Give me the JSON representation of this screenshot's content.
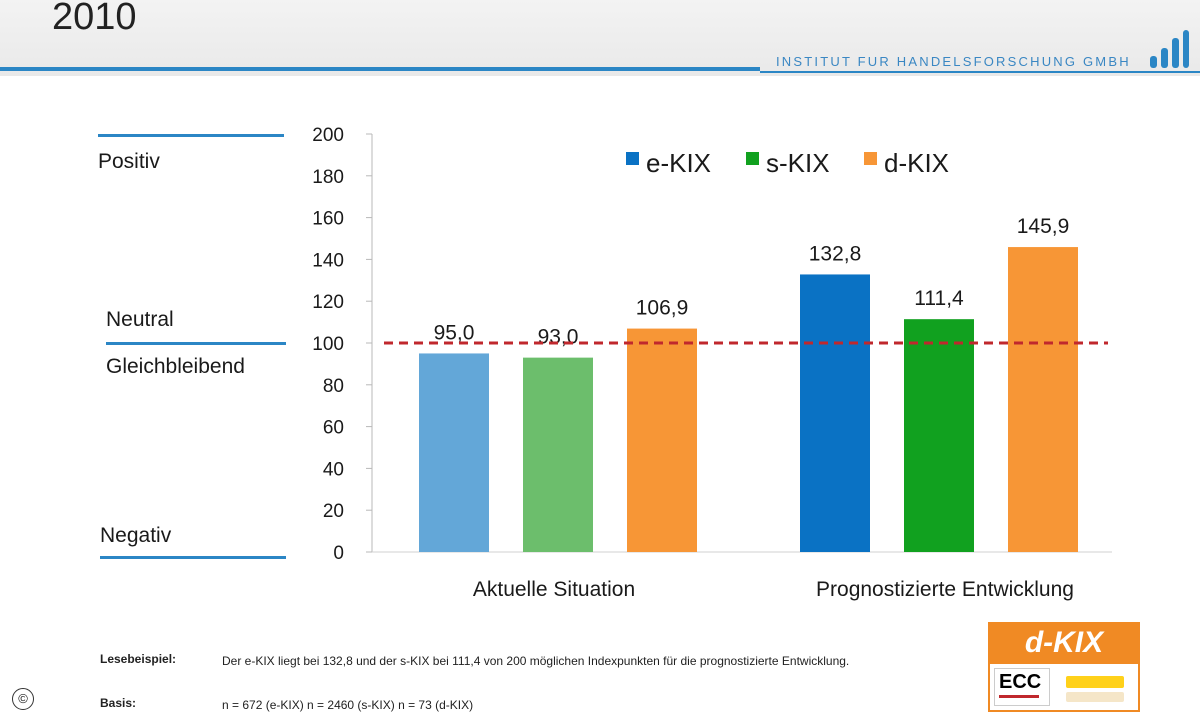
{
  "header": {
    "title": "2010",
    "institute": "INSTITUT FUR HANDELSFORSCHUNG GMBH"
  },
  "side_labels": {
    "positive": "Positiv",
    "neutral": "Neutral",
    "constant": "Gleichbleibend",
    "negative": "Negativ"
  },
  "chart_data": {
    "type": "bar",
    "categories": [
      "Aktuelle Situation",
      "Prognostizierte Entwicklung"
    ],
    "series": [
      {
        "name": "e-KIX",
        "values": [
          95.0,
          132.8
        ],
        "labels": [
          "95,0",
          "132,8"
        ],
        "color": "#0a72c4",
        "color_muted": "#63a7d8"
      },
      {
        "name": "s-KIX",
        "values": [
          93.0,
          111.4
        ],
        "labels": [
          "93,0",
          "111,4"
        ],
        "color": "#11a11f",
        "color_muted": "#6cbe6c"
      },
      {
        "name": "d-KIX",
        "values": [
          106.9,
          145.9
        ],
        "labels": [
          "106,9",
          "145,9"
        ],
        "color": "#f79636",
        "color_muted": "#f79636"
      }
    ],
    "ylim": [
      0,
      200
    ],
    "yticks": [
      0,
      20,
      40,
      60,
      80,
      100,
      120,
      140,
      160,
      180,
      200
    ],
    "reference_line": {
      "value": 100,
      "color": "#c0282d",
      "style": "dashed"
    },
    "legend_position": "top-right",
    "grid": false
  },
  "footnote": {
    "reading_example_label": "Lesebeispiel:",
    "reading_example_text": "Der e-KIX liegt bei 132,8 und der s-KIX bei 111,4 von 200 möglichen Indexpunkten für die prognostizierte Entwicklung.",
    "basis_label": "Basis:",
    "basis_text": "n = 672 (e-KIX) n = 2460 (s-KIX) n = 73 (d-KIX)"
  },
  "logo": {
    "name": "d-KIX",
    "ecc": "ECC"
  },
  "copyright_symbol": "©"
}
